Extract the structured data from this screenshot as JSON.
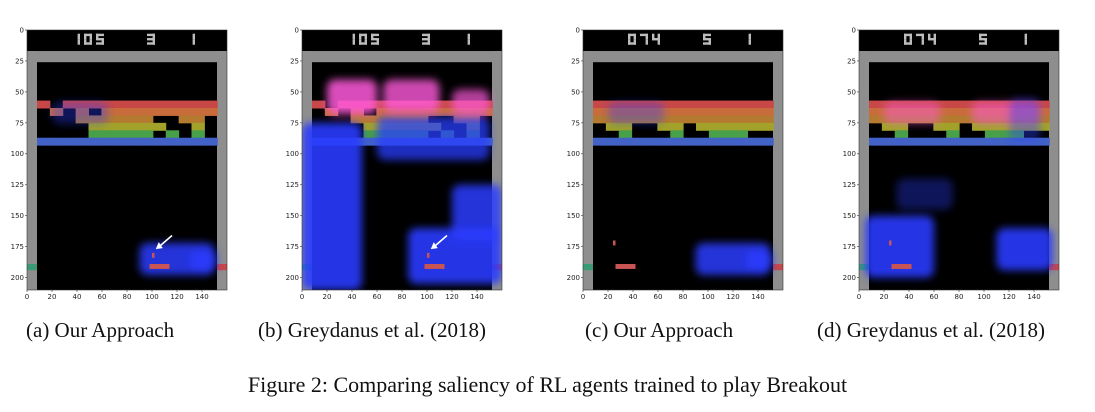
{
  "figure": {
    "caption": "Figure 2: Comparing saliency of RL agents trained to play Breakout"
  },
  "axes": {
    "y_ticks": [
      "0",
      "25",
      "50",
      "75",
      "100",
      "125",
      "150",
      "175",
      "200"
    ],
    "x_ticks": [
      "0",
      "20",
      "40",
      "60",
      "80",
      "100",
      "120",
      "140"
    ]
  },
  "panels": [
    {
      "caption": "(a) Our Approach",
      "score": "105",
      "lives": "3",
      "player": "1",
      "saliency": "sparse",
      "paddle_x": 100,
      "ball": {
        "x": 100,
        "y": 180
      },
      "arrow_visible": true,
      "bricks_missing": [
        [
          0,
          1
        ],
        [
          1,
          0
        ],
        [
          1,
          2
        ],
        [
          1,
          4
        ],
        [
          2,
          0
        ],
        [
          2,
          1
        ],
        [
          2,
          2
        ],
        [
          2,
          9
        ],
        [
          2,
          10
        ],
        [
          2,
          13
        ],
        [
          3,
          0
        ],
        [
          3,
          1
        ],
        [
          3,
          2
        ],
        [
          3,
          3
        ],
        [
          3,
          10
        ],
        [
          3,
          11
        ],
        [
          3,
          13
        ],
        [
          4,
          0
        ],
        [
          4,
          1
        ],
        [
          4,
          2
        ],
        [
          4,
          3
        ],
        [
          4,
          9
        ],
        [
          4,
          11
        ],
        [
          4,
          13
        ]
      ]
    },
    {
      "caption": "(b) Greydanus et al. (2018)",
      "score": "105",
      "lives": "3",
      "player": "1",
      "saliency": "dense",
      "paddle_x": 100,
      "ball": {
        "x": 100,
        "y": 180
      },
      "arrow_visible": true,
      "bricks_missing": [
        [
          0,
          1
        ],
        [
          1,
          0
        ],
        [
          1,
          2
        ],
        [
          1,
          4
        ],
        [
          2,
          0
        ],
        [
          2,
          1
        ],
        [
          2,
          2
        ],
        [
          2,
          9
        ],
        [
          2,
          10
        ],
        [
          2,
          13
        ],
        [
          3,
          0
        ],
        [
          3,
          1
        ],
        [
          3,
          2
        ],
        [
          3,
          3
        ],
        [
          3,
          10
        ],
        [
          3,
          11
        ],
        [
          3,
          13
        ],
        [
          4,
          0
        ],
        [
          4,
          1
        ],
        [
          4,
          2
        ],
        [
          4,
          3
        ],
        [
          4,
          9
        ],
        [
          4,
          11
        ],
        [
          4,
          13
        ]
      ]
    },
    {
      "caption": "(c) Our Approach",
      "score": "074",
      "lives": "5",
      "player": "1",
      "saliency": "sparse",
      "paddle_x": 28,
      "ball": {
        "x": 24,
        "y": 170
      },
      "arrow_visible": false,
      "bricks_missing": [
        [
          3,
          0
        ],
        [
          3,
          3
        ],
        [
          3,
          4
        ],
        [
          3,
          7
        ],
        [
          4,
          0
        ],
        [
          4,
          1
        ],
        [
          4,
          3
        ],
        [
          4,
          4
        ],
        [
          4,
          5
        ],
        [
          4,
          7
        ],
        [
          4,
          8
        ],
        [
          4,
          12
        ],
        [
          4,
          13
        ]
      ]
    },
    {
      "caption": "(d) Greydanus et al. (2018)",
      "score": "074",
      "lives": "5",
      "player": "1",
      "saliency": "medium",
      "paddle_x": 28,
      "ball": {
        "x": 24,
        "y": 170
      },
      "arrow_visible": false,
      "bricks_missing": [
        [
          3,
          0
        ],
        [
          3,
          3
        ],
        [
          3,
          4
        ],
        [
          3,
          7
        ],
        [
          4,
          0
        ],
        [
          4,
          1
        ],
        [
          4,
          3
        ],
        [
          4,
          4
        ],
        [
          4,
          5
        ],
        [
          4,
          7
        ],
        [
          4,
          8
        ],
        [
          4,
          12
        ],
        [
          4,
          13
        ]
      ]
    }
  ]
}
